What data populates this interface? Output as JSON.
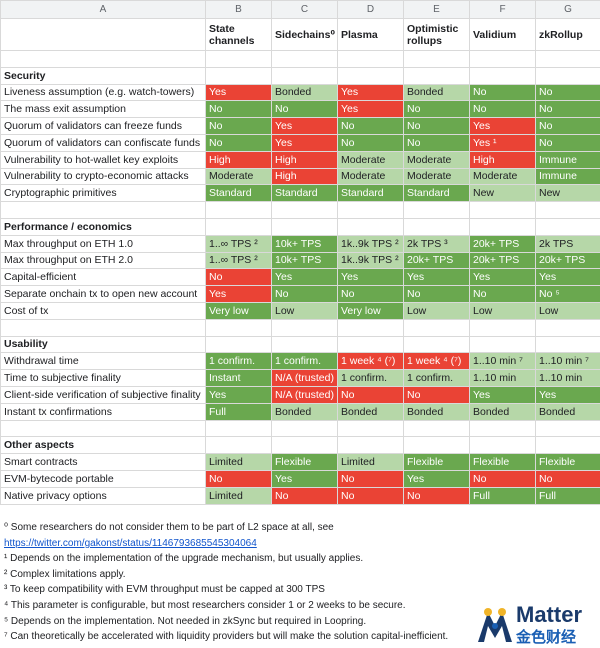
{
  "columns": [
    "A",
    "B",
    "C",
    "D",
    "E",
    "F",
    "G"
  ],
  "headers": [
    "",
    "State channels",
    "Sidechains⁰",
    "Plasma",
    "Optimistic rollups",
    "Validium",
    "zkRollup"
  ],
  "sections": [
    {
      "title": "Security",
      "rows": [
        {
          "label": "Liveness assumption (e.g. watch-towers)",
          "cells": [
            {
              "text": "Yes",
              "c": "red"
            },
            {
              "text": "Bonded",
              "c": "lgreen"
            },
            {
              "text": "Yes",
              "c": "red"
            },
            {
              "text": "Bonded",
              "c": "lgreen"
            },
            {
              "text": "No",
              "c": "green"
            },
            {
              "text": "No",
              "c": "green"
            }
          ]
        },
        {
          "label": "The mass exit assumption",
          "cells": [
            {
              "text": "No",
              "c": "green"
            },
            {
              "text": "No",
              "c": "green"
            },
            {
              "text": "Yes",
              "c": "red"
            },
            {
              "text": "No",
              "c": "green"
            },
            {
              "text": "No",
              "c": "green"
            },
            {
              "text": "No",
              "c": "green"
            }
          ]
        },
        {
          "label": "Quorum of validators can freeze funds",
          "cells": [
            {
              "text": "No",
              "c": "green"
            },
            {
              "text": "Yes",
              "c": "red"
            },
            {
              "text": "No",
              "c": "green"
            },
            {
              "text": "No",
              "c": "green"
            },
            {
              "text": "Yes",
              "c": "red"
            },
            {
              "text": "No",
              "c": "green"
            }
          ]
        },
        {
          "label": "Quorum of validators can confiscate funds",
          "cells": [
            {
              "text": "No",
              "c": "green"
            },
            {
              "text": "Yes",
              "c": "red"
            },
            {
              "text": "No",
              "c": "green"
            },
            {
              "text": "No",
              "c": "green"
            },
            {
              "text": "Yes ¹",
              "c": "red"
            },
            {
              "text": "No",
              "c": "green"
            }
          ]
        },
        {
          "label": "Vulnerability to hot-wallet key exploits",
          "cells": [
            {
              "text": "High",
              "c": "red"
            },
            {
              "text": "High",
              "c": "red"
            },
            {
              "text": "Moderate",
              "c": "lgreen"
            },
            {
              "text": "Moderate",
              "c": "lgreen"
            },
            {
              "text": "High",
              "c": "red"
            },
            {
              "text": "Immune",
              "c": "green"
            }
          ]
        },
        {
          "label": "Vulnerability to crypto-economic attacks",
          "cells": [
            {
              "text": "Moderate",
              "c": "lgreen"
            },
            {
              "text": "High",
              "c": "red"
            },
            {
              "text": "Moderate",
              "c": "lgreen"
            },
            {
              "text": "Moderate",
              "c": "lgreen"
            },
            {
              "text": "Moderate",
              "c": "lgreen"
            },
            {
              "text": "Immune",
              "c": "green"
            }
          ]
        },
        {
          "label": "Cryptographic primitives",
          "cells": [
            {
              "text": "Standard",
              "c": "green"
            },
            {
              "text": "Standard",
              "c": "green"
            },
            {
              "text": "Standard",
              "c": "green"
            },
            {
              "text": "Standard",
              "c": "green"
            },
            {
              "text": "New",
              "c": "lgreen"
            },
            {
              "text": "New",
              "c": "lgreen"
            }
          ]
        }
      ]
    },
    {
      "title": "Performance / economics",
      "rows": [
        {
          "label": "Max throughput on ETH 1.0",
          "cells": [
            {
              "text": "1..∞ TPS ²",
              "c": "lgreen"
            },
            {
              "text": "10k+ TPS",
              "c": "green"
            },
            {
              "text": "1k..9k TPS ²",
              "c": "lgreen"
            },
            {
              "text": "2k TPS ³",
              "c": "lgreen"
            },
            {
              "text": "20k+ TPS",
              "c": "green"
            },
            {
              "text": "2k TPS",
              "c": "lgreen"
            }
          ]
        },
        {
          "label": "Max throughput on ETH 2.0",
          "cells": [
            {
              "text": "1..∞ TPS ²",
              "c": "lgreen"
            },
            {
              "text": "10k+ TPS",
              "c": "green"
            },
            {
              "text": "1k..9k TPS ²",
              "c": "lgreen"
            },
            {
              "text": "20k+ TPS",
              "c": "green"
            },
            {
              "text": "20k+ TPS",
              "c": "green"
            },
            {
              "text": "20k+ TPS",
              "c": "green"
            }
          ]
        },
        {
          "label": "Capital-efficient",
          "cells": [
            {
              "text": "No",
              "c": "red"
            },
            {
              "text": "Yes",
              "c": "green"
            },
            {
              "text": "Yes",
              "c": "green"
            },
            {
              "text": "Yes",
              "c": "green"
            },
            {
              "text": "Yes",
              "c": "green"
            },
            {
              "text": "Yes",
              "c": "green"
            }
          ]
        },
        {
          "label": "Separate onchain tx to open new account",
          "cells": [
            {
              "text": "Yes",
              "c": "red"
            },
            {
              "text": "No",
              "c": "green"
            },
            {
              "text": "No",
              "c": "green"
            },
            {
              "text": "No",
              "c": "green"
            },
            {
              "text": "No",
              "c": "green"
            },
            {
              "text": "No ⁵",
              "c": "green"
            }
          ]
        },
        {
          "label": "Cost of tx",
          "cells": [
            {
              "text": "Very low",
              "c": "green"
            },
            {
              "text": "Low",
              "c": "lgreen"
            },
            {
              "text": "Very low",
              "c": "green"
            },
            {
              "text": "Low",
              "c": "lgreen"
            },
            {
              "text": "Low",
              "c": "lgreen"
            },
            {
              "text": "Low",
              "c": "lgreen"
            }
          ]
        }
      ]
    },
    {
      "title": "Usability",
      "rows": [
        {
          "label": "Withdrawal time",
          "cells": [
            {
              "text": "1 confirm.",
              "c": "green"
            },
            {
              "text": "1 confirm.",
              "c": "green"
            },
            {
              "text": "1 week ⁴ (⁷)",
              "c": "red"
            },
            {
              "text": "1 week ⁴ (⁷)",
              "c": "red"
            },
            {
              "text": "1..10 min ⁷",
              "c": "lgreen"
            },
            {
              "text": "1..10 min ⁷",
              "c": "lgreen"
            }
          ]
        },
        {
          "label": "Time to subjective finality",
          "cells": [
            {
              "text": "Instant",
              "c": "green"
            },
            {
              "text": "N/A (trusted)",
              "c": "red"
            },
            {
              "text": "1 confirm.",
              "c": "lgreen"
            },
            {
              "text": "1 confirm.",
              "c": "lgreen"
            },
            {
              "text": "1..10 min",
              "c": "lgreen"
            },
            {
              "text": "1..10 min",
              "c": "lgreen"
            }
          ]
        },
        {
          "label": "Client-side verification of subjective finality",
          "cells": [
            {
              "text": "Yes",
              "c": "green"
            },
            {
              "text": "N/A (trusted)",
              "c": "red"
            },
            {
              "text": "No",
              "c": "red"
            },
            {
              "text": "No",
              "c": "red"
            },
            {
              "text": "Yes",
              "c": "green"
            },
            {
              "text": "Yes",
              "c": "green"
            }
          ]
        },
        {
          "label": "Instant tx confirmations",
          "cells": [
            {
              "text": "Full",
              "c": "green"
            },
            {
              "text": "Bonded",
              "c": "lgreen"
            },
            {
              "text": "Bonded",
              "c": "lgreen"
            },
            {
              "text": "Bonded",
              "c": "lgreen"
            },
            {
              "text": "Bonded",
              "c": "lgreen"
            },
            {
              "text": "Bonded",
              "c": "lgreen"
            }
          ]
        }
      ]
    },
    {
      "title": "Other aspects",
      "rows": [
        {
          "label": "Smart contracts",
          "cells": [
            {
              "text": "Limited",
              "c": "lgreen"
            },
            {
              "text": "Flexible",
              "c": "green"
            },
            {
              "text": "Limited",
              "c": "lgreen"
            },
            {
              "text": "Flexible",
              "c": "green"
            },
            {
              "text": "Flexible",
              "c": "green"
            },
            {
              "text": "Flexible",
              "c": "green"
            }
          ]
        },
        {
          "label": "EVM-bytecode portable",
          "cells": [
            {
              "text": "No",
              "c": "red"
            },
            {
              "text": "Yes",
              "c": "green"
            },
            {
              "text": "No",
              "c": "red"
            },
            {
              "text": "Yes",
              "c": "green"
            },
            {
              "text": "No",
              "c": "red"
            },
            {
              "text": "No",
              "c": "red"
            }
          ]
        },
        {
          "label": "Native privacy options",
          "cells": [
            {
              "text": "Limited",
              "c": "lgreen"
            },
            {
              "text": "No",
              "c": "red"
            },
            {
              "text": "No",
              "c": "red"
            },
            {
              "text": "No",
              "c": "red"
            },
            {
              "text": "Full",
              "c": "green"
            },
            {
              "text": "Full",
              "c": "green"
            }
          ]
        }
      ]
    }
  ],
  "footnotes": {
    "fn0": "⁰ Some researchers do not consider them to be part of L2 space at all, see",
    "fn0_link": "https://twitter.com/gakonst/status/1146793685545304064",
    "fn1": "¹ Depends on the implementation of the upgrade mechanism, but usually applies.",
    "fn2": "² Complex limitations apply.",
    "fn3": "³ To keep compatibility with EVM throughput must be capped at 300 TPS",
    "fn4": "⁴ This parameter is configurable, but most researchers consider 1 or 2 weeks to be secure.",
    "fn5": "⁵ Depends on the implementation. Not needed in zkSync but required in Loopring.",
    "fn7": "⁷ Can theoretically be accelerated with liquidity providers but will make the solution capital-inefficient."
  },
  "logo": {
    "name": "Matter",
    "cn": "金色财经",
    "colors": {
      "gold": "#f0b429",
      "blue": "#1a5fb4",
      "navy": "#1a3a6b"
    }
  },
  "colors": {
    "green": "#6aa84f",
    "light_green": "#b6d7a8",
    "red": "#ea4335"
  }
}
